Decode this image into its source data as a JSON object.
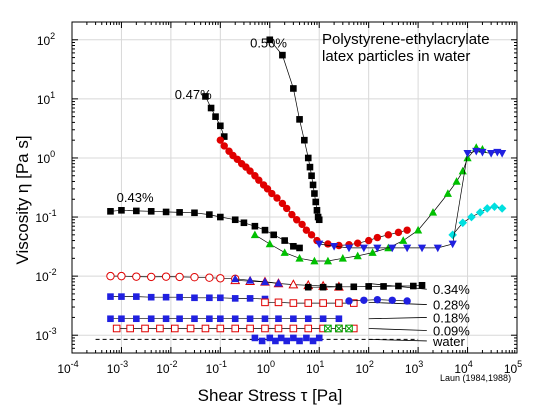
{
  "chart_data": {
    "type": "scatter",
    "title": "Polystyrene-ethylacrylate",
    "subtitle": "latex particles in water",
    "xlabel": "Shear Stress τ [Pa]",
    "ylabel": "Viscosity η [Pa s]",
    "credit": "Laun (1984,1988)",
    "x_scale": "log",
    "y_scale": "log",
    "xlim": [
      0.0001,
      100000
    ],
    "ylim": [
      0.0005,
      200
    ],
    "grid": true,
    "x_ticks": [
      {
        "value": 0.0001,
        "base": "10",
        "exp": "-4"
      },
      {
        "value": 0.001,
        "base": "10",
        "exp": "-3"
      },
      {
        "value": 0.01,
        "base": "10",
        "exp": "-2"
      },
      {
        "value": 0.1,
        "base": "10",
        "exp": "-1"
      },
      {
        "value": 1,
        "base": "10",
        "exp": "0"
      },
      {
        "value": 10,
        "base": "10",
        "exp": "1"
      },
      {
        "value": 100,
        "base": "10",
        "exp": "2"
      },
      {
        "value": 1000,
        "base": "10",
        "exp": "3"
      },
      {
        "value": 10000,
        "base": "10",
        "exp": "4"
      },
      {
        "value": 100000,
        "base": "10",
        "exp": "5"
      }
    ],
    "y_ticks": [
      {
        "value": 0.001,
        "base": "10",
        "exp": "-3"
      },
      {
        "value": 0.01,
        "base": "10",
        "exp": "-2"
      },
      {
        "value": 0.1,
        "base": "10",
        "exp": "-1"
      },
      {
        "value": 1,
        "base": "10",
        "exp": "0"
      },
      {
        "value": 10,
        "base": "10",
        "exp": "1"
      },
      {
        "value": 100,
        "base": "10",
        "exp": "2"
      }
    ],
    "series": [
      {
        "label": "0.50%",
        "color": "#000000",
        "marker": "square",
        "line": true,
        "x": [
          1.0,
          1.8,
          3.0,
          4.0,
          5.0,
          6.0,
          6.5,
          7.0,
          7.5,
          8.0,
          8.5,
          9.0,
          9.5,
          10.0
        ],
        "y": [
          100,
          55,
          15,
          4.5,
          2.0,
          1.0,
          0.7,
          0.5,
          0.35,
          0.25,
          0.18,
          0.13,
          0.1,
          0.09
        ]
      },
      {
        "label": "0.47%",
        "color": "#000000",
        "marker": "square",
        "line": true,
        "x": [
          0.05,
          0.065,
          0.08,
          0.1,
          0.12
        ],
        "y": [
          11,
          7,
          5,
          3.5,
          2.3
        ]
      },
      {
        "label": "",
        "color": "#e00000",
        "marker": "circle",
        "line": true,
        "x": [
          0.1,
          0.12,
          0.15,
          0.18,
          0.22,
          0.27,
          0.33,
          0.4,
          0.5,
          0.6,
          0.75,
          0.9,
          1.1,
          1.4,
          1.8,
          2.2,
          2.8,
          3.5,
          4.5,
          5.5,
          7.0,
          9.0,
          15,
          25,
          40,
          60,
          100,
          150,
          250,
          400,
          600
        ],
        "y": [
          2.0,
          1.6,
          1.3,
          1.1,
          0.95,
          0.8,
          0.7,
          0.6,
          0.5,
          0.42,
          0.35,
          0.3,
          0.25,
          0.21,
          0.17,
          0.14,
          0.11,
          0.09,
          0.075,
          0.06,
          0.05,
          0.04,
          0.035,
          0.033,
          0.034,
          0.036,
          0.04,
          0.045,
          0.05,
          0.055,
          0.06
        ]
      },
      {
        "label": "0.43%",
        "color": "#000000",
        "marker": "square",
        "line": true,
        "x": [
          0.0006,
          0.001,
          0.002,
          0.004,
          0.008,
          0.015,
          0.03,
          0.06,
          0.1,
          0.2,
          0.3,
          0.5,
          0.8,
          1.2,
          2.0,
          3.0,
          4.0
        ],
        "y": [
          0.125,
          0.13,
          0.127,
          0.125,
          0.122,
          0.12,
          0.118,
          0.11,
          0.1,
          0.09,
          0.08,
          0.07,
          0.06,
          0.05,
          0.04,
          0.032,
          0.03
        ]
      },
      {
        "label": "",
        "color": "#00c000",
        "marker": "triangle-up",
        "line": true,
        "x": [
          0.5,
          1.0,
          2.0,
          4.0,
          8.0,
          15,
          30,
          60,
          120,
          250,
          500,
          1000,
          2000,
          4000,
          6000,
          8000,
          10000,
          15000,
          20000
        ],
        "y": [
          0.05,
          0.035,
          0.025,
          0.02,
          0.018,
          0.018,
          0.02,
          0.022,
          0.025,
          0.03,
          0.04,
          0.06,
          0.12,
          0.25,
          0.4,
          0.6,
          1.0,
          1.5,
          1.4
        ]
      },
      {
        "label": "",
        "color": "#00e0e0",
        "marker": "diamond",
        "line": true,
        "x": [
          5000,
          8000,
          12000,
          18000,
          25000,
          35000,
          50000
        ],
        "y": [
          0.05,
          0.08,
          0.1,
          0.12,
          0.14,
          0.15,
          0.14
        ]
      },
      {
        "label": "",
        "color": "#2020e0",
        "marker": "triangle-down",
        "line": true,
        "x": [
          10,
          20,
          40,
          80,
          150,
          300,
          600,
          1200,
          2500,
          5000,
          10000,
          15000,
          20000,
          30000,
          40000,
          50000
        ],
        "y": [
          0.035,
          0.032,
          0.03,
          0.03,
          0.03,
          0.03,
          0.03,
          0.03,
          0.03,
          0.035,
          1.2,
          1.3,
          1.25,
          1.2,
          1.25,
          1.2
        ]
      },
      {
        "label": "0.34%",
        "color": "#e00000",
        "marker": "circle-open",
        "line": true,
        "x": [
          0.0006,
          0.001,
          0.002,
          0.004,
          0.008,
          0.015,
          0.03,
          0.06,
          0.1,
          0.2
        ],
        "y": [
          0.01,
          0.01,
          0.0098,
          0.0097,
          0.0098,
          0.0097,
          0.0096,
          0.0094,
          0.0092,
          0.009
        ]
      },
      {
        "label": "",
        "color": "#e00000",
        "marker": "triangle-open",
        "line": true,
        "x": [
          0.2,
          0.4,
          0.8,
          1.5,
          3.0,
          6.0,
          12,
          25
        ],
        "y": [
          0.0085,
          0.0082,
          0.008,
          0.0075,
          0.0072,
          0.007,
          0.0068,
          0.0066
        ]
      },
      {
        "label": "",
        "color": "#2020e0",
        "marker": "triangle-up",
        "line": true,
        "x": [
          0.2,
          0.4,
          0.8,
          1.5
        ],
        "y": [
          0.009,
          0.0085,
          0.008,
          0.0076
        ]
      },
      {
        "label": "",
        "color": "#000000",
        "marker": "square",
        "line": true,
        "x": [
          6,
          12,
          25,
          50,
          100,
          200,
          400,
          800,
          1200
        ],
        "y": [
          0.0065,
          0.0065,
          0.0066,
          0.0066,
          0.0067,
          0.0067,
          0.0068,
          0.0068,
          0.007
        ]
      },
      {
        "label": "0.28%",
        "color": "#2020e0",
        "marker": "square",
        "line": true,
        "x": [
          0.0006,
          0.001,
          0.002,
          0.004,
          0.008,
          0.015,
          0.03,
          0.06,
          0.1,
          0.2,
          0.4,
          0.8
        ],
        "y": [
          0.0045,
          0.0045,
          0.0045,
          0.0044,
          0.0044,
          0.0044,
          0.0043,
          0.0043,
          0.0043,
          0.0042,
          0.0042,
          0.0041
        ]
      },
      {
        "label": "",
        "color": "#e00000",
        "marker": "square-open",
        "line": true,
        "x": [
          0.8,
          1.5,
          3,
          6,
          12,
          25,
          50
        ],
        "y": [
          0.0036,
          0.0036,
          0.0035,
          0.0035,
          0.0035,
          0.0035,
          0.0035
        ]
      },
      {
        "label": "",
        "color": "#2020e0",
        "marker": "circle",
        "line": true,
        "x": [
          40,
          80,
          150,
          300,
          600
        ],
        "y": [
          0.0038,
          0.0039,
          0.004,
          0.0039,
          0.0038
        ]
      },
      {
        "label": "0.18%",
        "color": "#2020e0",
        "marker": "square",
        "line": true,
        "x": [
          0.0006,
          0.001,
          0.002,
          0.004,
          0.008,
          0.015,
          0.03,
          0.06,
          0.1,
          0.2,
          0.4,
          0.8,
          1.5,
          3,
          6,
          12,
          25
        ],
        "y": [
          0.0019,
          0.0019,
          0.0019,
          0.0019,
          0.0019,
          0.0019,
          0.0019,
          0.0019,
          0.0019,
          0.0019,
          0.0019,
          0.0019,
          0.0019,
          0.0019,
          0.0019,
          0.0019,
          0.0019
        ]
      },
      {
        "label": "0.09%",
        "color": "#e00000",
        "marker": "square-open",
        "line": true,
        "x": [
          0.0008,
          0.0015,
          0.003,
          0.006,
          0.012,
          0.025,
          0.05,
          0.1,
          0.2,
          0.4,
          0.8,
          1.5,
          3,
          6,
          12,
          25,
          50
        ],
        "y": [
          0.0013,
          0.0013,
          0.0013,
          0.0013,
          0.0013,
          0.0013,
          0.0013,
          0.0013,
          0.0013,
          0.0013,
          0.0013,
          0.0013,
          0.0013,
          0.0013,
          0.0013,
          0.0013,
          0.0013
        ]
      },
      {
        "label": "",
        "color": "#00a000",
        "marker": "square-cross",
        "line": false,
        "x": [
          15,
          25,
          40
        ],
        "y": [
          0.0013,
          0.0013,
          0.0013
        ]
      },
      {
        "label": "water",
        "color": "#2020e0",
        "marker": "square",
        "line": false,
        "x": [
          0.5,
          0.7,
          1.0,
          1.3,
          1.7,
          2.2,
          3.0,
          4.0,
          5.5,
          7.5,
          10
        ],
        "y": [
          0.0009,
          0.0008,
          0.0009,
          0.0008,
          0.0009,
          0.0008,
          0.0009,
          0.0008,
          0.0009,
          0.0008,
          0.0009
        ]
      }
    ],
    "reference_line": {
      "label": "water",
      "y": 0.00085,
      "xlim": [
        0.0003,
        1000
      ]
    },
    "leader_lines": [
      {
        "label": "0.34%",
        "from": [
          1500,
          0.006
        ],
        "to": [
          100,
          0.0075
        ]
      },
      {
        "label": "0.28%",
        "from": [
          1500,
          0.0033
        ],
        "to": [
          100,
          0.0036
        ]
      },
      {
        "label": "0.18%",
        "from": [
          1500,
          0.002
        ],
        "to": [
          100,
          0.0019
        ]
      },
      {
        "label": "0.09%",
        "from": [
          1500,
          0.0012
        ],
        "to": [
          100,
          0.0013
        ]
      },
      {
        "label": "water",
        "from": [
          1500,
          0.0008
        ],
        "to": [
          100,
          0.00085
        ]
      }
    ],
    "annotations": [
      {
        "text": "0.50%",
        "x": 0.4,
        "y": 90
      },
      {
        "text": "0.47%",
        "x": 0.012,
        "y": 12
      },
      {
        "text": "0.43%",
        "x": 0.0008,
        "y": 0.22
      },
      {
        "text": "0.34%",
        "x": 2000,
        "y": 0.006
      },
      {
        "text": "0.28%",
        "x": 2000,
        "y": 0.0033
      },
      {
        "text": "0.18%",
        "x": 2000,
        "y": 0.002
      },
      {
        "text": "0.09%",
        "x": 2000,
        "y": 0.0012
      },
      {
        "text": "water",
        "x": 2000,
        "y": 0.0008
      }
    ]
  }
}
